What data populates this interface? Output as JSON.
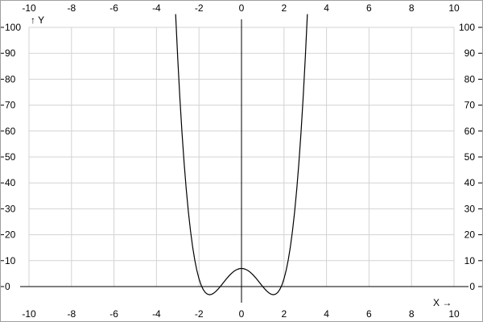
{
  "chart_data": {
    "type": "line",
    "xlim": [
      -10,
      10
    ],
    "ylim": [
      0,
      100
    ],
    "x_ticks": [
      -10,
      -8,
      -6,
      -4,
      -2,
      0,
      2,
      4,
      6,
      8,
      10
    ],
    "y_ticks": [
      0,
      10,
      20,
      30,
      40,
      50,
      60,
      70,
      80,
      90,
      100
    ],
    "xlabel": "X →",
    "ylabel": "↑ Y",
    "grid": true,
    "colors": {
      "grid": "#d3d3d3",
      "axis": "#000000",
      "curve": "#000000",
      "border": "#a0a0a0"
    },
    "series": [
      {
        "x": [
          -3.1,
          -3.0,
          -2.9,
          -2.8,
          -2.7,
          -2.6,
          -2.5,
          -2.4,
          -2.3,
          -2.2,
          -2.1,
          -2.0,
          -1.9,
          -1.8,
          -1.7,
          -1.6,
          -1.5,
          -1.4,
          -1.3,
          -1.2,
          -1.1,
          -1.0,
          -0.9,
          -0.8,
          -0.7,
          -0.6,
          -0.5,
          -0.4,
          -0.3,
          -0.2,
          -0.1,
          0,
          0.1,
          0.2,
          0.3,
          0.4,
          0.5,
          0.6,
          0.7,
          0.8,
          0.9,
          1.0,
          1.1,
          1.2,
          1.3,
          1.4,
          1.5,
          1.6,
          1.7,
          1.8,
          1.9,
          2.0,
          2.1,
          2.2,
          2.3,
          2.4,
          2.5,
          2.6,
          2.7,
          2.8,
          2.9,
          3.0,
          3.1
        ],
        "y": [
          105.1,
          88,
          72.77,
          59.37,
          47.68,
          37.56,
          28.88,
          21.52,
          15.36,
          10.29,
          6.21,
          3,
          0.57,
          -1.16,
          -2.31,
          -2.93,
          -3.13,
          -2.96,
          -2.5,
          -1.81,
          -0.96,
          0,
          1.02,
          2.06,
          3.07,
          4.02,
          4.88,
          5.61,
          6.21,
          6.64,
          6.91,
          7,
          6.91,
          6.64,
          6.21,
          5.61,
          4.88,
          4.02,
          3.07,
          2.06,
          1.02,
          0,
          -0.96,
          -1.81,
          -2.5,
          -2.96,
          -3.13,
          -2.93,
          -2.31,
          -1.16,
          0.57,
          3,
          6.21,
          10.29,
          15.36,
          21.52,
          28.88,
          37.56,
          47.68,
          59.37,
          72.77,
          88,
          105.1
        ]
      }
    ]
  }
}
